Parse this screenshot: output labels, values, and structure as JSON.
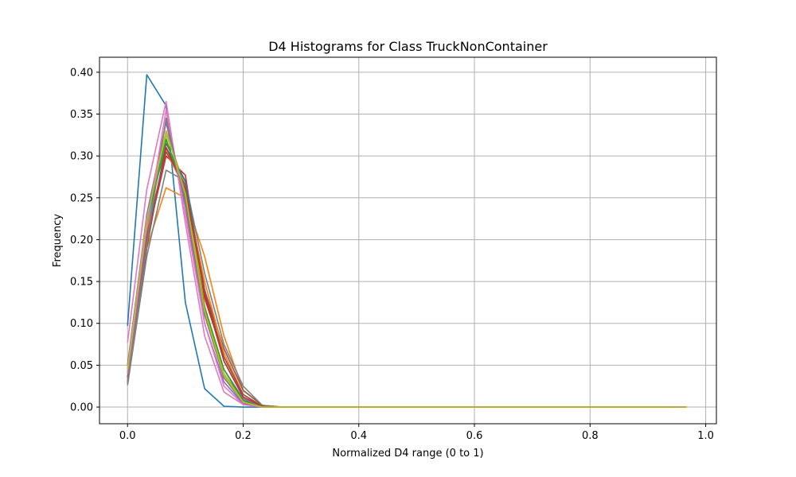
{
  "chart_data": {
    "type": "line",
    "title": "D4 Histograms for Class TruckNonContainer",
    "xlabel": "Normalized D4 range (0 to 1)",
    "ylabel": "Frequency",
    "xlim": [
      -0.0485,
      1.0185
    ],
    "ylim": [
      -0.0199,
      0.4179
    ],
    "xticks": [
      0.0,
      0.2,
      0.4,
      0.6,
      0.8,
      1.0
    ],
    "xtick_labels": [
      "0.0",
      "0.2",
      "0.4",
      "0.6",
      "0.8",
      "1.0"
    ],
    "yticks": [
      0.0,
      0.05,
      0.1,
      0.15,
      0.2,
      0.25,
      0.3,
      0.35,
      0.4
    ],
    "ytick_labels": [
      "0.00",
      "0.05",
      "0.10",
      "0.15",
      "0.20",
      "0.25",
      "0.30",
      "0.35",
      "0.40"
    ],
    "grid": true,
    "x": [
      0.0,
      0.0333,
      0.0667,
      0.1,
      0.1333,
      0.1667,
      0.2,
      0.2333,
      0.2667,
      0.3,
      0.3333,
      0.3667,
      0.4,
      0.4333,
      0.4667,
      0.5,
      0.5333,
      0.5667,
      0.6,
      0.6333,
      0.6667,
      0.7,
      0.7333,
      0.7667,
      0.8,
      0.8333,
      0.8667,
      0.9,
      0.9333,
      0.9667
    ],
    "series": [
      {
        "color": "#1f77b4",
        "values": [
          0.097,
          0.397,
          0.36,
          0.125,
          0.022,
          0.001,
          0.0,
          0.0,
          0.0,
          0.0,
          0.0,
          0.0,
          0.0,
          0.0,
          0.0,
          0.0,
          0.0,
          0.0,
          0.0,
          0.0,
          0.0,
          0.0,
          0.0,
          0.0,
          0.0,
          0.0,
          0.0,
          0.0,
          0.0,
          0.0
        ]
      },
      {
        "color": "#ff7f0e",
        "values": [
          0.05,
          0.19,
          0.262,
          0.25,
          0.18,
          0.085,
          0.02,
          0.002,
          0.0,
          0.0,
          0.0,
          0.0,
          0.0,
          0.0,
          0.0,
          0.0,
          0.0,
          0.0,
          0.0,
          0.0,
          0.0,
          0.0,
          0.0,
          0.0,
          0.0,
          0.0,
          0.0,
          0.0,
          0.0,
          0.0
        ]
      },
      {
        "color": "#2ca02c",
        "values": [
          0.04,
          0.23,
          0.31,
          0.26,
          0.12,
          0.04,
          0.008,
          0.0,
          0.0,
          0.0,
          0.0,
          0.0,
          0.0,
          0.0,
          0.0,
          0.0,
          0.0,
          0.0,
          0.0,
          0.0,
          0.0,
          0.0,
          0.0,
          0.0,
          0.0,
          0.0,
          0.0,
          0.0,
          0.0,
          0.0
        ]
      },
      {
        "color": "#d62728",
        "values": [
          0.035,
          0.2,
          0.3,
          0.277,
          0.13,
          0.06,
          0.015,
          0.001,
          0.0,
          0.0,
          0.0,
          0.0,
          0.0,
          0.0,
          0.0,
          0.0,
          0.0,
          0.0,
          0.0,
          0.0,
          0.0,
          0.0,
          0.0,
          0.0,
          0.0,
          0.0,
          0.0,
          0.0,
          0.0,
          0.0
        ]
      },
      {
        "color": "#9467bd",
        "values": [
          0.03,
          0.21,
          0.33,
          0.26,
          0.11,
          0.045,
          0.01,
          0.0,
          0.0,
          0.0,
          0.0,
          0.0,
          0.0,
          0.0,
          0.0,
          0.0,
          0.0,
          0.0,
          0.0,
          0.0,
          0.0,
          0.0,
          0.0,
          0.0,
          0.0,
          0.0,
          0.0,
          0.0,
          0.0,
          0.0
        ]
      },
      {
        "color": "#8c564b",
        "values": [
          0.028,
          0.19,
          0.315,
          0.27,
          0.14,
          0.07,
          0.02,
          0.002,
          0.0,
          0.0,
          0.0,
          0.0,
          0.0,
          0.0,
          0.0,
          0.0,
          0.0,
          0.0,
          0.0,
          0.0,
          0.0,
          0.0,
          0.0,
          0.0,
          0.0,
          0.0,
          0.0,
          0.0,
          0.0,
          0.0
        ]
      },
      {
        "color": "#e377c2",
        "values": [
          0.077,
          0.26,
          0.365,
          0.22,
          0.085,
          0.018,
          0.003,
          0.0,
          0.0,
          0.0,
          0.0,
          0.0,
          0.0,
          0.0,
          0.0,
          0.0,
          0.0,
          0.0,
          0.0,
          0.0,
          0.0,
          0.0,
          0.0,
          0.0,
          0.0,
          0.0,
          0.0,
          0.0,
          0.0,
          0.0
        ]
      },
      {
        "color": "#7f7f7f",
        "values": [
          0.026,
          0.18,
          0.283,
          0.27,
          0.16,
          0.075,
          0.025,
          0.002,
          0.0,
          0.0,
          0.0,
          0.0,
          0.0,
          0.0,
          0.0,
          0.0,
          0.0,
          0.0,
          0.0,
          0.0,
          0.0,
          0.0,
          0.0,
          0.0,
          0.0,
          0.0,
          0.0,
          0.0,
          0.0,
          0.0
        ]
      },
      {
        "color": "#bcbd22",
        "values": [
          0.045,
          0.22,
          0.325,
          0.265,
          0.12,
          0.04,
          0.006,
          0.0,
          0.0,
          0.0,
          0.0,
          0.0,
          0.0,
          0.0,
          0.0,
          0.0,
          0.0,
          0.0,
          0.0,
          0.0,
          0.0,
          0.0,
          0.0,
          0.0,
          0.0,
          0.0,
          0.0,
          0.0,
          0.0,
          0.0
        ]
      },
      {
        "color": "#17becf",
        "values": [
          0.04,
          0.215,
          0.32,
          0.255,
          0.115,
          0.035,
          0.005,
          0.0,
          0.0,
          0.0,
          0.0,
          0.0,
          0.0,
          0.0,
          0.0,
          0.0,
          0.0,
          0.0,
          0.0,
          0.0,
          0.0,
          0.0,
          0.0,
          0.0,
          0.0,
          0.0,
          0.0,
          0.0,
          0.0,
          0.0
        ]
      },
      {
        "color": "#1f77b4",
        "values": [
          0.035,
          0.2,
          0.31,
          0.27,
          0.14,
          0.055,
          0.012,
          0.001,
          0.0,
          0.0,
          0.0,
          0.0,
          0.0,
          0.0,
          0.0,
          0.0,
          0.0,
          0.0,
          0.0,
          0.0,
          0.0,
          0.0,
          0.0,
          0.0,
          0.0,
          0.0,
          0.0,
          0.0,
          0.0,
          0.0
        ]
      },
      {
        "color": "#ff7f0e",
        "values": [
          0.04,
          0.21,
          0.305,
          0.26,
          0.15,
          0.065,
          0.015,
          0.001,
          0.0,
          0.0,
          0.0,
          0.0,
          0.0,
          0.0,
          0.0,
          0.0,
          0.0,
          0.0,
          0.0,
          0.0,
          0.0,
          0.0,
          0.0,
          0.0,
          0.0,
          0.0,
          0.0,
          0.0,
          0.0,
          0.0
        ]
      },
      {
        "color": "#2ca02c",
        "values": [
          0.045,
          0.22,
          0.32,
          0.25,
          0.12,
          0.045,
          0.008,
          0.0,
          0.0,
          0.0,
          0.0,
          0.0,
          0.0,
          0.0,
          0.0,
          0.0,
          0.0,
          0.0,
          0.0,
          0.0,
          0.0,
          0.0,
          0.0,
          0.0,
          0.0,
          0.0,
          0.0,
          0.0,
          0.0,
          0.0
        ]
      },
      {
        "color": "#d62728",
        "values": [
          0.03,
          0.2,
          0.31,
          0.26,
          0.135,
          0.055,
          0.012,
          0.001,
          0.0,
          0.0,
          0.0,
          0.0,
          0.0,
          0.0,
          0.0,
          0.0,
          0.0,
          0.0,
          0.0,
          0.0,
          0.0,
          0.0,
          0.0,
          0.0,
          0.0,
          0.0,
          0.0,
          0.0,
          0.0,
          0.0
        ]
      },
      {
        "color": "#9467bd",
        "values": [
          0.05,
          0.23,
          0.34,
          0.24,
          0.1,
          0.03,
          0.004,
          0.0,
          0.0,
          0.0,
          0.0,
          0.0,
          0.0,
          0.0,
          0.0,
          0.0,
          0.0,
          0.0,
          0.0,
          0.0,
          0.0,
          0.0,
          0.0,
          0.0,
          0.0,
          0.0,
          0.0,
          0.0,
          0.0,
          0.0
        ]
      },
      {
        "color": "#8c564b",
        "values": [
          0.035,
          0.205,
          0.305,
          0.265,
          0.14,
          0.06,
          0.015,
          0.001,
          0.0,
          0.0,
          0.0,
          0.0,
          0.0,
          0.0,
          0.0,
          0.0,
          0.0,
          0.0,
          0.0,
          0.0,
          0.0,
          0.0,
          0.0,
          0.0,
          0.0,
          0.0,
          0.0,
          0.0,
          0.0,
          0.0
        ]
      },
      {
        "color": "#e377c2",
        "values": [
          0.04,
          0.215,
          0.355,
          0.23,
          0.1,
          0.025,
          0.003,
          0.0,
          0.0,
          0.0,
          0.0,
          0.0,
          0.0,
          0.0,
          0.0,
          0.0,
          0.0,
          0.0,
          0.0,
          0.0,
          0.0,
          0.0,
          0.0,
          0.0,
          0.0,
          0.0,
          0.0,
          0.0,
          0.0,
          0.0
        ]
      },
      {
        "color": "#7f7f7f",
        "values": [
          0.03,
          0.195,
          0.345,
          0.245,
          0.11,
          0.035,
          0.006,
          0.0,
          0.0,
          0.0,
          0.0,
          0.0,
          0.0,
          0.0,
          0.0,
          0.0,
          0.0,
          0.0,
          0.0,
          0.0,
          0.0,
          0.0,
          0.0,
          0.0,
          0.0,
          0.0,
          0.0,
          0.0,
          0.0,
          0.0
        ]
      },
      {
        "color": "#bcbd22",
        "values": [
          0.045,
          0.225,
          0.33,
          0.255,
          0.115,
          0.038,
          0.006,
          0.0,
          0.0,
          0.0,
          0.0,
          0.0,
          0.0,
          0.0,
          0.0,
          0.0,
          0.0,
          0.0,
          0.0,
          0.0,
          0.0,
          0.0,
          0.0,
          0.0,
          0.0,
          0.0,
          0.0,
          0.0,
          0.0,
          0.0
        ]
      }
    ]
  }
}
